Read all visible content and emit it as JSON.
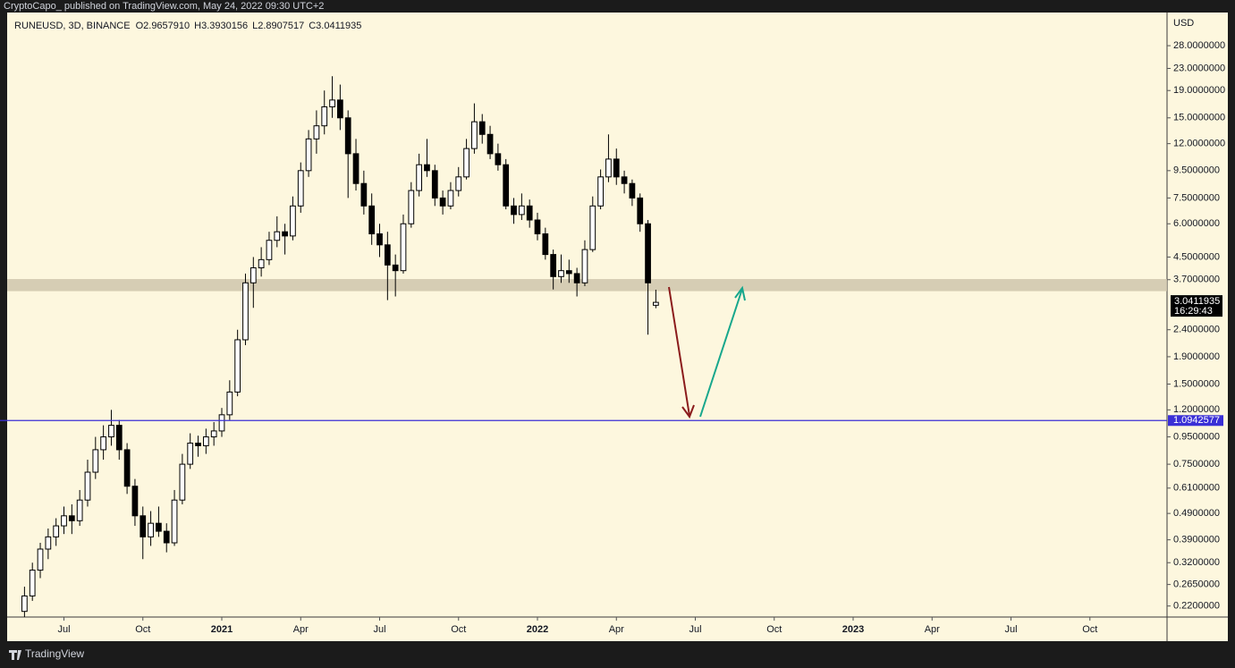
{
  "header": {
    "byline": "CryptoCapo_ published on TradingView.com, May 24, 2022 09:30 UTC+2",
    "footer": "TradingView"
  },
  "chart_data": {
    "type": "candlestick",
    "symbol": "RUNEUSD, 3D, BINANCE",
    "ohlc_legend": [
      {
        "key": "O",
        "value": "2.9657910"
      },
      {
        "key": "H",
        "value": "3.3930156"
      },
      {
        "key": "L",
        "value": "2.8907517"
      },
      {
        "key": "C",
        "value": "3.0411935"
      }
    ],
    "currency": "USD",
    "log_scale": true,
    "grid": false,
    "up_color": "#ffffff",
    "down_color": "#000000",
    "x": [
      2020.375,
      2020.4,
      2020.425,
      2020.45,
      2020.475,
      2020.5,
      2020.525,
      2020.55,
      2020.575,
      2020.6,
      2020.625,
      2020.65,
      2020.675,
      2020.7,
      2020.725,
      2020.75,
      2020.775,
      2020.8,
      2020.825,
      2020.85,
      2020.875,
      2020.9,
      2020.925,
      2020.95,
      2020.975,
      2021,
      2021.025,
      2021.05,
      2021.075,
      2021.1,
      2021.125,
      2021.15,
      2021.175,
      2021.2,
      2021.225,
      2021.25,
      2021.275,
      2021.3,
      2021.325,
      2021.35,
      2021.375,
      2021.4,
      2021.425,
      2021.45,
      2021.475,
      2021.5,
      2021.525,
      2021.55,
      2021.575,
      2021.6,
      2021.625,
      2021.65,
      2021.675,
      2021.7,
      2021.725,
      2021.75,
      2021.775,
      2021.8,
      2021.825,
      2021.85,
      2021.875,
      2021.9,
      2021.925,
      2021.95,
      2021.975,
      2022,
      2022.025,
      2022.05,
      2022.075,
      2022.1,
      2022.125,
      2022.15,
      2022.175,
      2022.2,
      2022.225,
      2022.25,
      2022.275,
      2022.3,
      2022.325,
      2022.35,
      2022.375
    ],
    "candles": [
      [
        0.21,
        0.26,
        0.2,
        0.24
      ],
      [
        0.24,
        0.32,
        0.23,
        0.3
      ],
      [
        0.3,
        0.38,
        0.28,
        0.36
      ],
      [
        0.36,
        0.43,
        0.33,
        0.4
      ],
      [
        0.4,
        0.47,
        0.37,
        0.44
      ],
      [
        0.44,
        0.52,
        0.41,
        0.48
      ],
      [
        0.48,
        0.53,
        0.41,
        0.46
      ],
      [
        0.46,
        0.6,
        0.44,
        0.55
      ],
      [
        0.55,
        0.78,
        0.52,
        0.7
      ],
      [
        0.7,
        0.95,
        0.66,
        0.85
      ],
      [
        0.85,
        1.05,
        0.78,
        0.95
      ],
      [
        0.95,
        1.2,
        0.88,
        1.05
      ],
      [
        1.05,
        1.1,
        0.78,
        0.85
      ],
      [
        0.85,
        0.9,
        0.58,
        0.62
      ],
      [
        0.62,
        0.66,
        0.44,
        0.48
      ],
      [
        0.48,
        0.52,
        0.33,
        0.4
      ],
      [
        0.4,
        0.5,
        0.37,
        0.45
      ],
      [
        0.45,
        0.52,
        0.4,
        0.42
      ],
      [
        0.42,
        0.45,
        0.35,
        0.38
      ],
      [
        0.38,
        0.6,
        0.37,
        0.55
      ],
      [
        0.55,
        0.82,
        0.53,
        0.75
      ],
      [
        0.75,
        0.98,
        0.72,
        0.9
      ],
      [
        0.9,
        0.96,
        0.8,
        0.88
      ],
      [
        0.88,
        1.02,
        0.82,
        0.95
      ],
      [
        0.95,
        1.08,
        0.88,
        1
      ],
      [
        1,
        1.22,
        0.95,
        1.15
      ],
      [
        1.15,
        1.55,
        1.1,
        1.4
      ],
      [
        1.4,
        2.4,
        1.35,
        2.2
      ],
      [
        2.2,
        3.9,
        2.1,
        3.6
      ],
      [
        3.6,
        4.5,
        2.9,
        4.1
      ],
      [
        4.1,
        4.9,
        3.8,
        4.4
      ],
      [
        4.4,
        5.6,
        4.2,
        5.2
      ],
      [
        5.2,
        6.4,
        4.9,
        5.6
      ],
      [
        5.6,
        6,
        4.6,
        5.4
      ],
      [
        5.4,
        7.6,
        5.2,
        7
      ],
      [
        7,
        10.2,
        6.6,
        9.5
      ],
      [
        9.5,
        13.5,
        9,
        12.5
      ],
      [
        12.5,
        16,
        11,
        14
      ],
      [
        14,
        19,
        13,
        16.5
      ],
      [
        16.5,
        21.5,
        15,
        17.5
      ],
      [
        17.5,
        20,
        13.5,
        15
      ],
      [
        15,
        16,
        7.5,
        11
      ],
      [
        11,
        12.5,
        8,
        8.5
      ],
      [
        8.5,
        9.5,
        6.5,
        7
      ],
      [
        7,
        7.8,
        5,
        5.5
      ],
      [
        5.5,
        6,
        4.5,
        5
      ],
      [
        5,
        5.6,
        3.1,
        4.2
      ],
      [
        4.2,
        4.6,
        3.2,
        4
      ],
      [
        4,
        6.5,
        3.9,
        6
      ],
      [
        6,
        8.6,
        5.8,
        8
      ],
      [
        8,
        11,
        7.6,
        10
      ],
      [
        10,
        12.5,
        9,
        9.5
      ],
      [
        9.5,
        10,
        7,
        7.5
      ],
      [
        7.5,
        8,
        6.5,
        7
      ],
      [
        7,
        8.6,
        6.8,
        8
      ],
      [
        8,
        9.8,
        7.6,
        9
      ],
      [
        9,
        12.5,
        8.8,
        11.5
      ],
      [
        11.5,
        17,
        11,
        14.5
      ],
      [
        14.5,
        15.5,
        12,
        13
      ],
      [
        13,
        14,
        10.5,
        11
      ],
      [
        11,
        12,
        9.5,
        10
      ],
      [
        10,
        10.5,
        6.8,
        7
      ],
      [
        7,
        7.5,
        6,
        6.5
      ],
      [
        6.5,
        7.8,
        6.2,
        7
      ],
      [
        7,
        7.4,
        5.8,
        6.2
      ],
      [
        6.2,
        6.6,
        5.2,
        5.5
      ],
      [
        5.5,
        5.8,
        4.4,
        4.6
      ],
      [
        4.6,
        4.8,
        3.4,
        3.8
      ],
      [
        3.8,
        4.6,
        3.6,
        4
      ],
      [
        4,
        4.4,
        3.6,
        3.9
      ],
      [
        3.9,
        4.1,
        3.2,
        3.6
      ],
      [
        3.6,
        5.2,
        3.5,
        4.8
      ],
      [
        4.8,
        7.6,
        4.7,
        7
      ],
      [
        7,
        9.6,
        6.8,
        9
      ],
      [
        9,
        13,
        8.6,
        10.5
      ],
      [
        10.5,
        11.5,
        8.4,
        9
      ],
      [
        9,
        9.5,
        7.8,
        8.5
      ],
      [
        8.5,
        8.8,
        7,
        7.5
      ],
      [
        7.5,
        7.8,
        5.6,
        6
      ],
      [
        6,
        6.2,
        2.3,
        3.6
      ],
      [
        2.965791,
        3.3930156,
        2.8907517,
        3.0411935
      ]
    ],
    "xlim": [
      2020.3201,
      2023.9943
    ],
    "xticks": [
      {
        "value": 2020.5,
        "label": "Jul"
      },
      {
        "value": 2020.75,
        "label": "Oct"
      },
      2021,
      {
        "value": 2021.25,
        "label": "Apr"
      },
      {
        "value": 2021.5,
        "label": "Jul"
      },
      {
        "value": 2021.75,
        "label": "Oct"
      },
      2022,
      {
        "value": 2022.25,
        "label": "Apr"
      },
      {
        "value": 2022.5,
        "label": "Jul"
      },
      {
        "value": 2022.75,
        "label": "Oct"
      },
      2023,
      {
        "value": 2023.25,
        "label": "Apr"
      },
      {
        "value": 2023.5,
        "label": "Jul"
      },
      {
        "value": 2023.75,
        "label": "Oct"
      }
    ],
    "ylim": [
      0.2,
      37.3
    ],
    "yticks": [
      {
        "value": 28,
        "label": "28.0000000"
      },
      {
        "value": 23,
        "label": "23.0000000"
      },
      {
        "value": 19,
        "label": "19.0000000"
      },
      {
        "value": 15,
        "label": "15.0000000"
      },
      {
        "value": 12,
        "label": "12.0000000"
      },
      {
        "value": 9.5,
        "label": "9.5000000"
      },
      {
        "value": 7.5,
        "label": "7.5000000"
      },
      {
        "value": 6,
        "label": "6.0000000"
      },
      {
        "value": 4.5,
        "label": "4.5000000"
      },
      {
        "value": 3.7,
        "label": "3.7000000"
      },
      {
        "value": 2.4,
        "label": "2.4000000"
      },
      {
        "value": 1.9,
        "label": "1.9000000"
      },
      {
        "value": 1.5,
        "label": "1.5000000"
      },
      {
        "value": 1.2,
        "label": "1.2000000"
      },
      {
        "value": 0.95,
        "label": "0.9500000"
      },
      {
        "value": 0.75,
        "label": "0.7500000"
      },
      {
        "value": 0.61,
        "label": "0.6100000"
      },
      {
        "value": 0.49,
        "label": "0.4900000"
      },
      {
        "value": 0.39,
        "label": "0.3900000"
      },
      {
        "value": 0.32,
        "label": "0.3200000"
      },
      {
        "value": 0.265,
        "label": "0.2650000"
      },
      {
        "value": 0.22,
        "label": "0.2200000"
      }
    ],
    "zone": [
      3.35,
      3.72
    ],
    "zone_color": "#cfc6ad",
    "hline": {
      "value": 1.0942577,
      "label": "1.0942577",
      "color": "#3a2fd6"
    },
    "last_price": {
      "value": 3.0411935,
      "label": "3.0411935",
      "countdown": "16:29:43"
    }
  }
}
